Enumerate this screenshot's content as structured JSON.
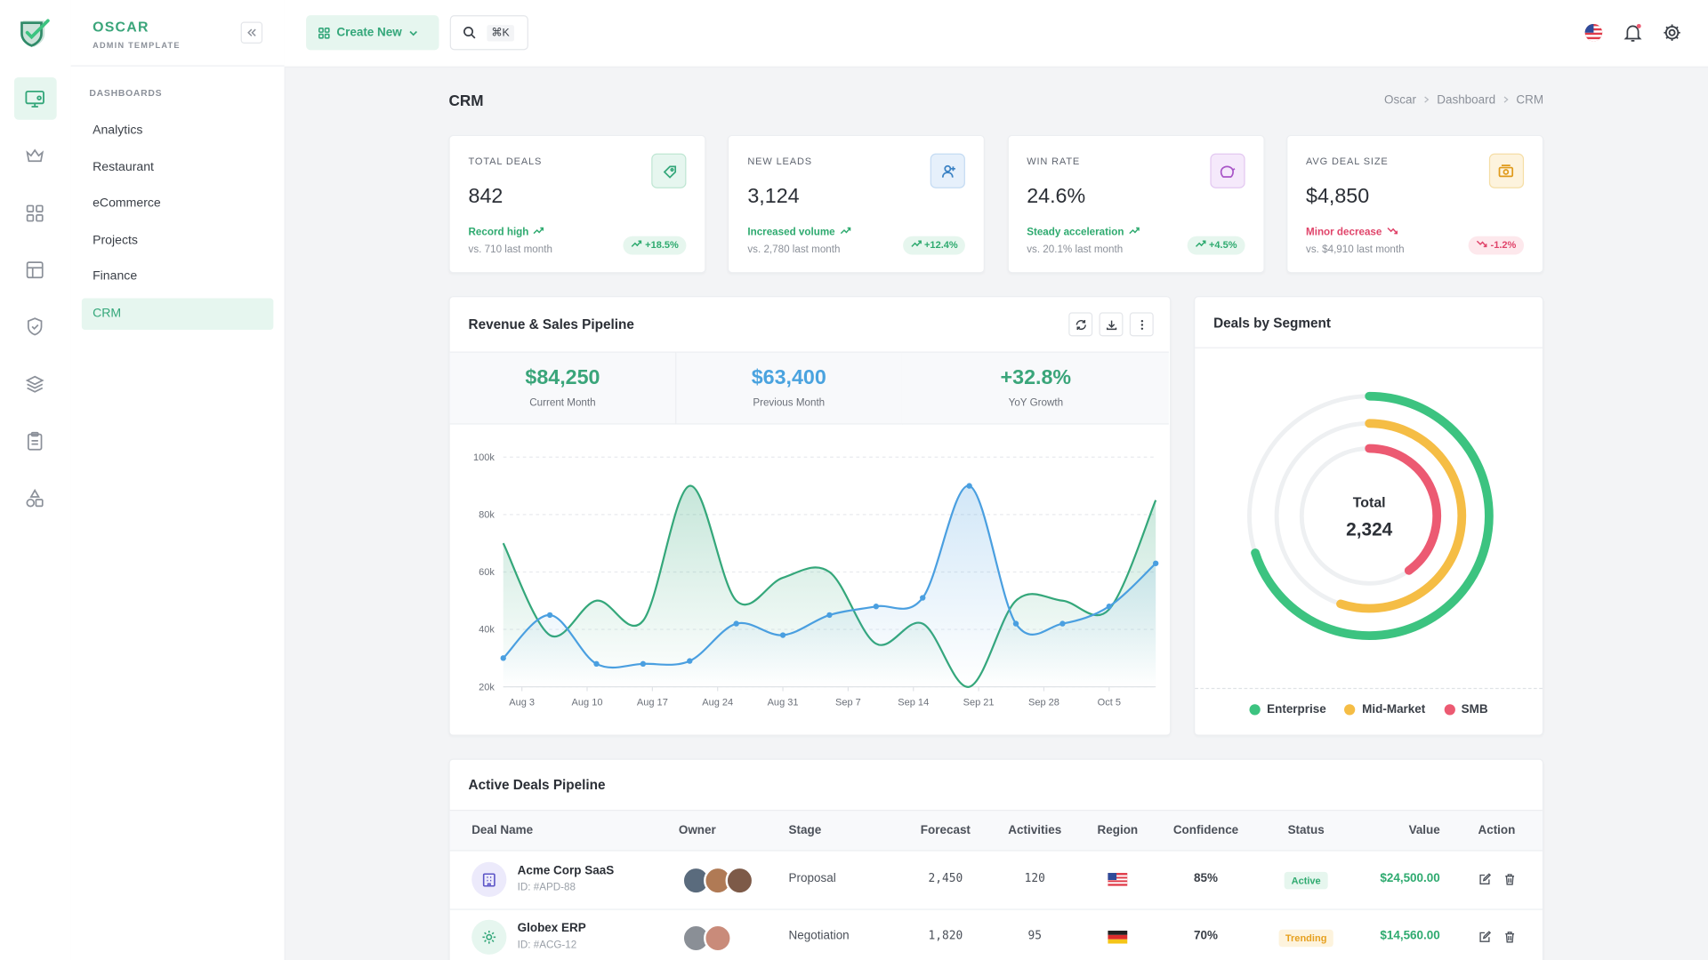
{
  "brand": {
    "name": "OSCAR",
    "tagline": "ADMIN TEMPLATE"
  },
  "nav": {
    "section": "DASHBOARDS",
    "items": [
      "Analytics",
      "Restaurant",
      "eCommerce",
      "Projects",
      "Finance",
      "CRM"
    ]
  },
  "topbar": {
    "create": "Create New",
    "shortcut": "⌘K"
  },
  "page": {
    "title": "CRM",
    "breadcrumb": [
      "Oscar",
      "Dashboard",
      "CRM"
    ]
  },
  "stats": [
    {
      "label": "TOTAL DEALS",
      "value": "842",
      "note": "Record high",
      "compare": "vs. 710 last month",
      "change": "+18.5%"
    },
    {
      "label": "NEW LEADS",
      "value": "3,124",
      "note": "Increased volume",
      "compare": "vs. 2,780 last month",
      "change": "+12.4%"
    },
    {
      "label": "WIN RATE",
      "value": "24.6%",
      "note": "Steady acceleration",
      "compare": "vs. 20.1% last month",
      "change": "+4.5%"
    },
    {
      "label": "AVG DEAL SIZE",
      "value": "$4,850",
      "note": "Minor decrease",
      "compare": "vs. $4,910 last month",
      "change": "-1.2%"
    }
  ],
  "revenue_summary": [
    {
      "value": "$84,250",
      "label": "Current Month"
    },
    {
      "value": "$63,400",
      "label": "Previous Month"
    },
    {
      "value": "+32.8%",
      "label": "YoY Growth"
    }
  ],
  "chart_data": [
    {
      "type": "line",
      "title": "Revenue & Sales Pipeline",
      "x": [
        "Aug 1",
        "Aug 6",
        "Aug 11",
        "Aug 16",
        "Aug 21",
        "Aug 26",
        "Aug 31",
        "Sep 5",
        "Sep 10",
        "Sep 15",
        "Sep 20",
        "Sep 25",
        "Sep 30",
        "Oct 5",
        "Oct 10"
      ],
      "series": [
        {
          "color": "#34a77a",
          "values": [
            70000,
            38000,
            50000,
            43000,
            90000,
            50000,
            58000,
            60000,
            35000,
            42000,
            20000,
            50000,
            50000,
            47000,
            85000
          ]
        },
        {
          "color": "#4a9fe0",
          "values": [
            30000,
            45000,
            28000,
            28000,
            29000,
            42000,
            38000,
            45000,
            48000,
            51000,
            90000,
            42000,
            42000,
            48000,
            63000
          ]
        }
      ],
      "xlim": [
        "Aug 1",
        "Oct 10"
      ],
      "xticks": [
        "Aug 3",
        "Aug 10",
        "Aug 17",
        "Aug 24",
        "Aug 31",
        "Sep 7",
        "Sep 14",
        "Sep 21",
        "Sep 28",
        "Oct 5"
      ],
      "ylim": [
        20000,
        100000
      ],
      "yticks": [
        {
          "value": 20000,
          "label": "20k"
        },
        {
          "value": 40000,
          "label": "40k"
        },
        {
          "value": 60000,
          "label": "60k"
        },
        {
          "value": 80000,
          "label": "80k"
        },
        {
          "value": 100000,
          "label": "100k"
        }
      ],
      "grid": true
    },
    {
      "type": "radial",
      "title": "Deals by Segment",
      "categories": [
        "Enterprise",
        "Mid-Market",
        "SMB"
      ],
      "values": [
        70,
        55,
        40
      ],
      "colors": [
        "#3cc380",
        "#f5bd45",
        "#ec5a72"
      ],
      "ylim": [
        0,
        100
      ],
      "center_label": "Total",
      "center_value": "2,324",
      "legend": "bottom"
    }
  ],
  "table": {
    "title": "Active Deals Pipeline",
    "columns": [
      "Deal Name",
      "Owner",
      "Stage",
      "Forecast",
      "Activities",
      "Region",
      "Confidence",
      "Status",
      "Value",
      "Action"
    ],
    "rows": [
      {
        "name": "Acme Corp SaaS",
        "id": "ID: #APD-88",
        "stage": "Proposal",
        "forecast": "2,450",
        "activities": "120",
        "confidence": "85%",
        "status": "Active",
        "value": "$24,500.00"
      },
      {
        "name": "Globex ERP",
        "id": "ID: #ACG-12",
        "stage": "Negotiation",
        "forecast": "1,820",
        "activities": "95",
        "confidence": "70%",
        "status": "Trending",
        "value": "$14,560.00"
      }
    ]
  }
}
